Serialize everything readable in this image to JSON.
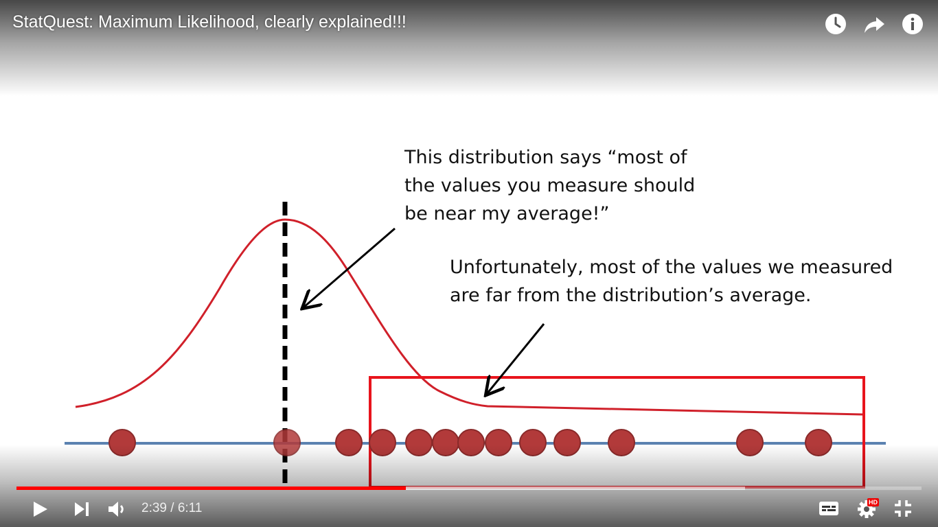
{
  "player": {
    "title": "StatQuest: Maximum Likelihood, clearly explained!!!",
    "time_current": "2:39",
    "time_separator": " / ",
    "time_total": "6:11",
    "progress_fraction": 0.43,
    "buffer_fraction": 0.805,
    "accent_color": "#ff0000",
    "top_icons": [
      "watch-later-icon",
      "share-icon",
      "info-icon"
    ],
    "bottom_icons": [
      "play-icon",
      "next-icon",
      "volume-icon",
      "subtitles-icon",
      "settings-icon",
      "exit-fullscreen-icon"
    ],
    "hd_badge": "HD"
  },
  "slide": {
    "callout_top_lines": [
      "This distribution says “most of",
      "the values you measure should",
      "be near my average!”"
    ],
    "callout_bottom_lines": [
      "Unfortunately, most of the values we measured",
      "are far from the distribution’s average."
    ],
    "curve_color": "#d0202a",
    "point_color": "#b23a3a",
    "axis_color": "#5b82b0",
    "box_color": "#e8141c"
  }
}
